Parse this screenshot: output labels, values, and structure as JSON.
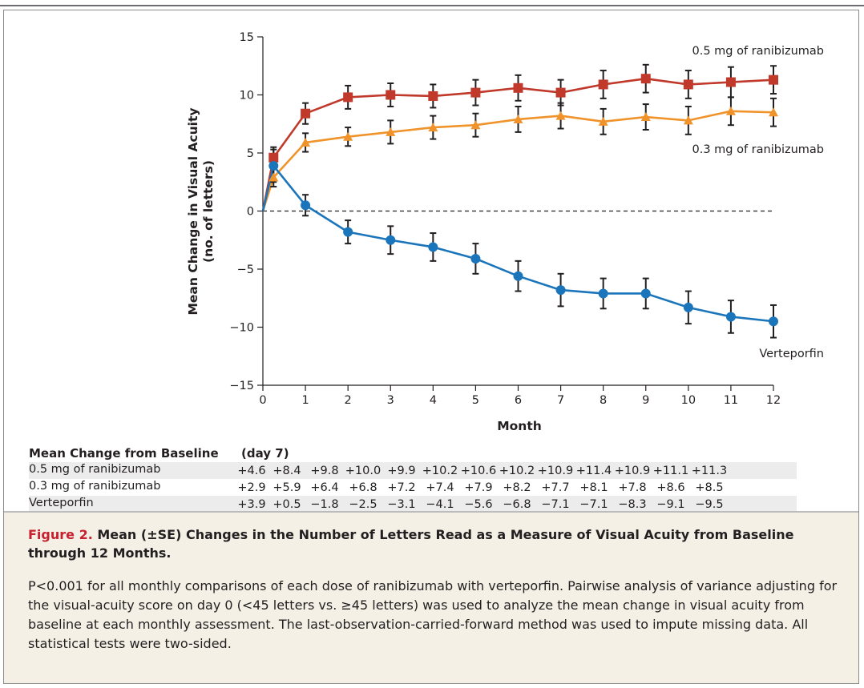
{
  "chart_data": {
    "type": "line",
    "xlabel": "Month",
    "ylabel_line1": "Mean Change in Visual Acuity",
    "ylabel_line2": "(no. of letters)",
    "xlim": [
      0,
      12
    ],
    "ylim": [
      -15,
      15
    ],
    "xticks": [
      "0",
      "1",
      "2",
      "3",
      "4",
      "5",
      "6",
      "7",
      "8",
      "9",
      "10",
      "11",
      "12"
    ],
    "yticks": [
      "15",
      "10",
      "5",
      "0",
      "−5",
      "−10",
      "−15"
    ],
    "ytick_values": [
      15,
      10,
      5,
      0,
      -5,
      -10,
      -15
    ],
    "reference_line": {
      "y": 0,
      "style": "dashed"
    },
    "x": [
      0,
      0.25,
      1,
      2,
      3,
      4,
      5,
      6,
      7,
      8,
      9,
      10,
      11,
      12
    ],
    "series": [
      {
        "name": "0.5 mg of ranibizumab",
        "marker": "square",
        "color": "#c0392b",
        "values": [
          0,
          4.6,
          8.4,
          9.8,
          10.0,
          9.9,
          10.2,
          10.6,
          10.2,
          10.9,
          11.4,
          10.9,
          11.1,
          11.3
        ],
        "se": [
          0,
          0.9,
          0.9,
          1.0,
          1.0,
          1.0,
          1.1,
          1.1,
          1.1,
          1.2,
          1.2,
          1.2,
          1.3,
          1.2
        ]
      },
      {
        "name": "0.3 mg of ranibizumab",
        "marker": "triangle",
        "color": "#f0932b",
        "values": [
          0,
          2.9,
          5.9,
          6.4,
          6.8,
          7.2,
          7.4,
          7.9,
          8.2,
          7.7,
          8.1,
          7.8,
          8.6,
          8.5
        ],
        "se": [
          0,
          0.8,
          0.8,
          0.8,
          1.0,
          1.0,
          1.0,
          1.1,
          1.1,
          1.1,
          1.1,
          1.2,
          1.2,
          1.2
        ]
      },
      {
        "name": "Verteporfin",
        "marker": "circle",
        "color": "#1b75bb",
        "values": [
          0,
          3.9,
          0.5,
          -1.8,
          -2.5,
          -3.1,
          -4.1,
          -5.6,
          -6.8,
          -7.1,
          -7.1,
          -8.3,
          -9.1,
          -9.5
        ],
        "se": [
          0,
          1.4,
          0.9,
          1.0,
          1.2,
          1.2,
          1.3,
          1.3,
          1.4,
          1.3,
          1.3,
          1.4,
          1.4,
          1.4
        ]
      }
    ]
  },
  "table": {
    "header": "Mean Change from Baseline",
    "first_column_note": "(day 7)",
    "rows": [
      {
        "label": "0.5 mg of ranibizumab",
        "values": [
          "+4.6",
          "+8.4",
          "+9.8",
          "+10.0",
          "+9.9",
          "+10.2",
          "+10.6",
          "+10.2",
          "+10.9",
          "+11.4",
          "+10.9",
          "+11.1",
          "+11.3"
        ]
      },
      {
        "label": "0.3 mg of ranibizumab",
        "values": [
          "+2.9",
          "+5.9",
          "+6.4",
          "+6.8",
          "+7.2",
          "+7.4",
          "+7.9",
          "+8.2",
          "+7.7",
          "+8.1",
          "+7.8",
          "+8.6",
          "+8.5"
        ]
      },
      {
        "label": "Verteporfin",
        "values": [
          "+3.9",
          "+0.5",
          "−1.8",
          "−2.5",
          "−3.1",
          "−4.1",
          "−5.6",
          "−6.8",
          "−7.1",
          "−7.1",
          "−8.3",
          "−9.1",
          "−9.5"
        ]
      }
    ]
  },
  "caption": {
    "figure_label": "Figure 2.",
    "title": "Mean (±SE) Changes in the Number of Letters Read as a Measure of Visual Acuity from Baseline through 12 Months.",
    "body": "P<0.001 for all monthly comparisons of each dose of ranibizumab with verteporfin. Pairwise analysis of variance adjusting for the visual-acuity score on day 0 (<45 letters vs. ≥45 letters) was used to analyze the mean change in visual acuity from baseline at each monthly assessment. The last-observation-carried-forward method was used to impute missing data. All statistical tests were two-sided."
  },
  "colors": {
    "accent_red": "#c8202f",
    "caption_background": "#f4f0e6",
    "table_shading": "#ececec"
  }
}
